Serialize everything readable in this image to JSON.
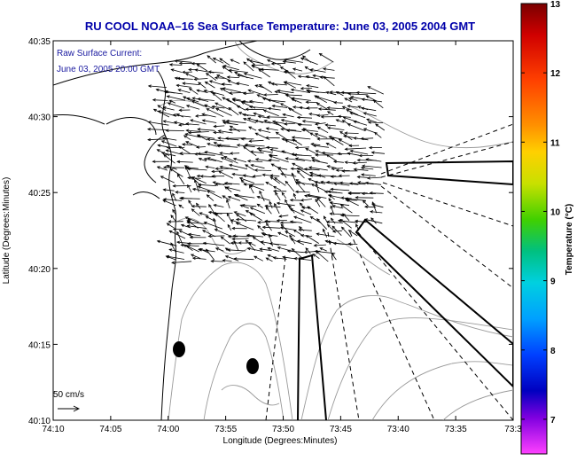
{
  "title": "RU COOL  NOAA–16  Sea Surface Temperature:  June 03, 2005 2004 GMT",
  "title_color": "#0000aa",
  "annotation": {
    "line1": "Raw Surface Current:",
    "line2": "June 03, 2005 20:00 GMT",
    "color": "#1a1aa0"
  },
  "axes": {
    "xlabel": "Longitude (Degrees:Minutes)",
    "ylabel": "Latitude (Degrees:Minutes)",
    "x_ticks": [
      "74:10",
      "74:05",
      "74:00",
      "73:55",
      "73:50",
      "73:45",
      "73:40",
      "73:35",
      "73:3"
    ],
    "y_ticks": [
      "40:35",
      "40:30",
      "40:25",
      "40:20",
      "40:15",
      "40:10"
    ]
  },
  "scale": {
    "label": "50 cm/s"
  },
  "colorbar": {
    "label": "Temperature (°C)",
    "ticks": [
      "13",
      "12",
      "11",
      "10",
      "9",
      "8",
      "7"
    ],
    "min": 6.5,
    "max": 13
  },
  "chart_data": {
    "type": "vector_field",
    "title": "RU COOL  NOAA–16  Sea Surface Temperature:  June 03, 2005 2004 GMT",
    "xlabel": "Longitude (Degrees:Minutes)",
    "ylabel": "Latitude (Degrees:Minutes)",
    "xlim_deg_west": [
      74.1667,
      73.5
    ],
    "ylim_deg_north": [
      40.1667,
      40.5833
    ],
    "vector_grid": {
      "lon_min": 73.72,
      "lon_max": 74.03,
      "lat_min": 40.35,
      "lat_max": 40.56,
      "dominant_direction": "toward the northwest",
      "typical_speed_cm_s": 35
    },
    "scale_vector_cm_s": 50,
    "temperature_range_c": [
      6.5,
      13
    ]
  }
}
